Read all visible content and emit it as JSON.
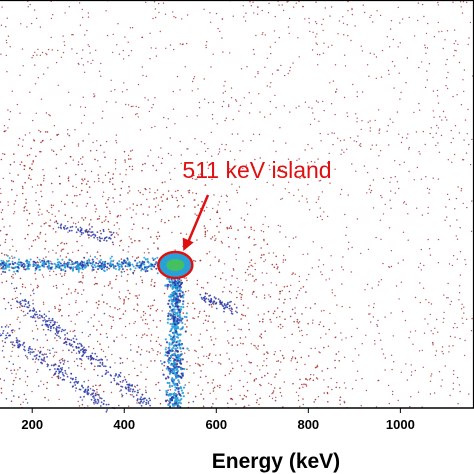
{
  "chart_data": {
    "type": "heatmap",
    "title": "",
    "xlabel": "Energy (keV)",
    "ylabel": "",
    "x_ticks": [
      200,
      400,
      600,
      800,
      1000
    ],
    "xlim": [
      130,
      1160
    ],
    "colors": {
      "sparse": "#a01818",
      "medium": "#2a3aa8",
      "dense": "#2aa0d8",
      "peak": "#44c060",
      "highlight": "#e01010"
    },
    "features": [
      {
        "kind": "horizontal band",
        "x_range": [
          130,
          511
        ],
        "y": 511
      },
      {
        "kind": "vertical band",
        "x": 511,
        "y_range": [
          511,
          130
        ]
      },
      {
        "kind": "peak",
        "x": 511,
        "y": 511
      }
    ],
    "annotations": [
      {
        "text": "511 keV island",
        "x": 511,
        "y": 511
      }
    ]
  }
}
